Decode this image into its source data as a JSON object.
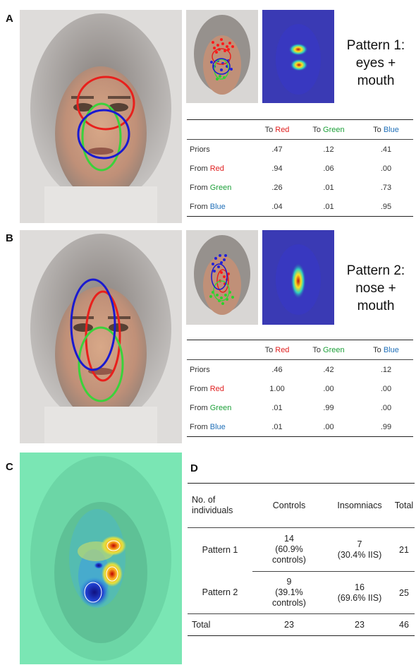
{
  "panels": {
    "a": {
      "label": "A",
      "title_line1": "Pattern 1:",
      "title_line2": "eyes + mouth",
      "table": {
        "headers": [
          {
            "prefix": "To ",
            "color": "Red"
          },
          {
            "prefix": "To ",
            "color": "Green"
          },
          {
            "prefix": "To ",
            "color": "Blue"
          }
        ],
        "rows": [
          {
            "prefix": "Priors",
            "color": "",
            "values": [
              ".47",
              ".12",
              ".41"
            ]
          },
          {
            "prefix": "From ",
            "color": "Red",
            "values": [
              ".94",
              ".06",
              ".00"
            ]
          },
          {
            "prefix": "From ",
            "color": "Green",
            "values": [
              ".26",
              ".01",
              ".73"
            ]
          },
          {
            "prefix": "From ",
            "color": "Blue",
            "values": [
              ".04",
              ".01",
              ".95"
            ]
          }
        ]
      }
    },
    "b": {
      "label": "B",
      "title_line1": "Pattern 2:",
      "title_line2": "nose + mouth",
      "table": {
        "headers": [
          {
            "prefix": "To ",
            "color": "Red"
          },
          {
            "prefix": "To ",
            "color": "Green"
          },
          {
            "prefix": "To ",
            "color": "Blue"
          }
        ],
        "rows": [
          {
            "prefix": "Priors",
            "color": "",
            "values": [
              ".46",
              ".42",
              ".12"
            ]
          },
          {
            "prefix": "From ",
            "color": "Red",
            "values": [
              "1.00",
              ".00",
              ".00"
            ]
          },
          {
            "prefix": "From ",
            "color": "Green",
            "values": [
              ".01",
              ".99",
              ".00"
            ]
          },
          {
            "prefix": "From ",
            "color": "Blue",
            "values": [
              ".01",
              ".00",
              ".99"
            ]
          }
        ]
      }
    },
    "c": {
      "label": "C"
    },
    "d": {
      "label": "D",
      "table": {
        "header": {
          "col0": "No. of individuals",
          "col1": "Controls",
          "col2": "Insomniacs",
          "col3": "Total"
        },
        "rows": [
          {
            "name": "Pattern 1",
            "controls_n": "14",
            "controls_pct": "(60.9% controls)",
            "ins_n": "7",
            "ins_pct": "(30.4% IIS)",
            "total": "21"
          },
          {
            "name": "Pattern 2",
            "controls_n": "9",
            "controls_pct": "(39.1% controls)",
            "ins_n": "16",
            "ins_pct": "(69.6% IIS)",
            "total": "25"
          }
        ],
        "total_row": {
          "name": "Total",
          "controls": "23",
          "insomniacs": "23",
          "total": "46"
        }
      }
    }
  },
  "colors": {
    "red": "#e02020",
    "green": "#1ea03a",
    "blue": "#1f6fb8",
    "roi_red": "#e8201c",
    "roi_green": "#3bd23b",
    "roi_blue": "#1a1ad0"
  }
}
